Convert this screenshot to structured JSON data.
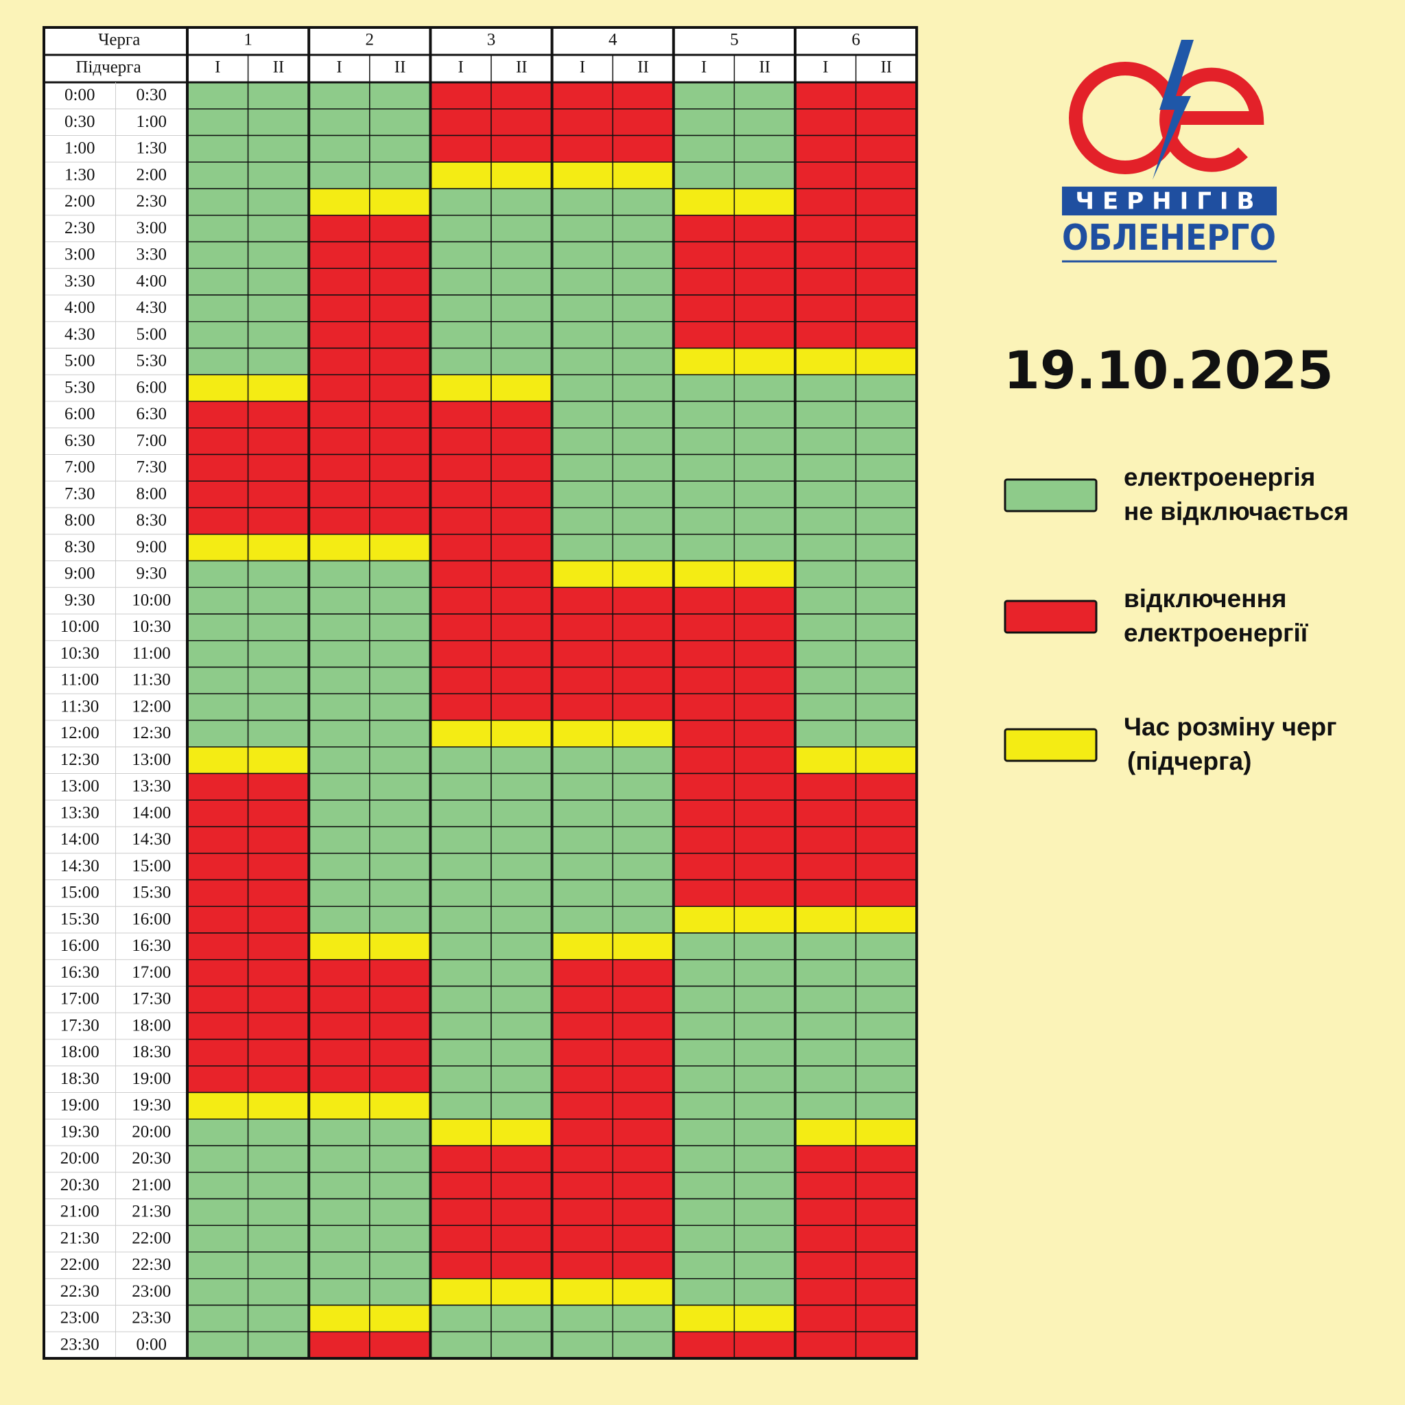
{
  "table": {
    "header": {
      "queue_label": "Черга",
      "subqueue_label": "Підчерга",
      "queues": [
        "1",
        "2",
        "3",
        "4",
        "5",
        "6"
      ],
      "subqueues": [
        "I",
        "II"
      ]
    },
    "rows": [
      {
        "start": "0:00",
        "end": "0:30",
        "cells": [
          "#8ecb8a",
          "#8ecb8a",
          "#8ecb8a",
          "#8ecb8a",
          "#e8232a",
          "#e8232a",
          "#e8232a",
          "#e8232a",
          "#8ecb8a",
          "#8ecb8a",
          "#e8232a",
          "#e8232a"
        ]
      },
      {
        "start": "0:30",
        "end": "1:00",
        "cells": [
          "#8ecb8a",
          "#8ecb8a",
          "#8ecb8a",
          "#8ecb8a",
          "#e8232a",
          "#e8232a",
          "#e8232a",
          "#e8232a",
          "#8ecb8a",
          "#8ecb8a",
          "#e8232a",
          "#e8232a"
        ]
      },
      {
        "start": "1:00",
        "end": "1:30",
        "cells": [
          "#8ecb8a",
          "#8ecb8a",
          "#8ecb8a",
          "#8ecb8a",
          "#e8232a",
          "#e8232a",
          "#e8232a",
          "#e8232a",
          "#8ecb8a",
          "#8ecb8a",
          "#e8232a",
          "#e8232a"
        ]
      },
      {
        "start": "1:30",
        "end": "2:00",
        "cells": [
          "#8ecb8a",
          "#8ecb8a",
          "#8ecb8a",
          "#8ecb8a",
          "#f4ec14",
          "#f4ec14",
          "#f4ec14",
          "#f4ec14",
          "#8ecb8a",
          "#8ecb8a",
          "#e8232a",
          "#e8232a"
        ]
      },
      {
        "start": "2:00",
        "end": "2:30",
        "cells": [
          "#8ecb8a",
          "#8ecb8a",
          "#f4ec14",
          "#f4ec14",
          "#8ecb8a",
          "#8ecb8a",
          "#8ecb8a",
          "#8ecb8a",
          "#f4ec14",
          "#f4ec14",
          "#e8232a",
          "#e8232a"
        ]
      },
      {
        "start": "2:30",
        "end": "3:00",
        "cells": [
          "#8ecb8a",
          "#8ecb8a",
          "#e8232a",
          "#e8232a",
          "#8ecb8a",
          "#8ecb8a",
          "#8ecb8a",
          "#8ecb8a",
          "#e8232a",
          "#e8232a",
          "#e8232a",
          "#e8232a"
        ]
      },
      {
        "start": "3:00",
        "end": "3:30",
        "cells": [
          "#8ecb8a",
          "#8ecb8a",
          "#e8232a",
          "#e8232a",
          "#8ecb8a",
          "#8ecb8a",
          "#8ecb8a",
          "#8ecb8a",
          "#e8232a",
          "#e8232a",
          "#e8232a",
          "#e8232a"
        ]
      },
      {
        "start": "3:30",
        "end": "4:00",
        "cells": [
          "#8ecb8a",
          "#8ecb8a",
          "#e8232a",
          "#e8232a",
          "#8ecb8a",
          "#8ecb8a",
          "#8ecb8a",
          "#8ecb8a",
          "#e8232a",
          "#e8232a",
          "#e8232a",
          "#e8232a"
        ]
      },
      {
        "start": "4:00",
        "end": "4:30",
        "cells": [
          "#8ecb8a",
          "#8ecb8a",
          "#e8232a",
          "#e8232a",
          "#8ecb8a",
          "#8ecb8a",
          "#8ecb8a",
          "#8ecb8a",
          "#e8232a",
          "#e8232a",
          "#e8232a",
          "#e8232a"
        ]
      },
      {
        "start": "4:30",
        "end": "5:00",
        "cells": [
          "#8ecb8a",
          "#8ecb8a",
          "#e8232a",
          "#e8232a",
          "#8ecb8a",
          "#8ecb8a",
          "#8ecb8a",
          "#8ecb8a",
          "#e8232a",
          "#e8232a",
          "#e8232a",
          "#e8232a"
        ]
      },
      {
        "start": "5:00",
        "end": "5:30",
        "cells": [
          "#8ecb8a",
          "#8ecb8a",
          "#e8232a",
          "#e8232a",
          "#8ecb8a",
          "#8ecb8a",
          "#8ecb8a",
          "#8ecb8a",
          "#f4ec14",
          "#f4ec14",
          "#f4ec14",
          "#f4ec14"
        ]
      },
      {
        "start": "5:30",
        "end": "6:00",
        "cells": [
          "#f4ec14",
          "#f4ec14",
          "#e8232a",
          "#e8232a",
          "#f4ec14",
          "#f4ec14",
          "#8ecb8a",
          "#8ecb8a",
          "#8ecb8a",
          "#8ecb8a",
          "#8ecb8a",
          "#8ecb8a"
        ]
      },
      {
        "start": "6:00",
        "end": "6:30",
        "cells": [
          "#e8232a",
          "#e8232a",
          "#e8232a",
          "#e8232a",
          "#e8232a",
          "#e8232a",
          "#8ecb8a",
          "#8ecb8a",
          "#8ecb8a",
          "#8ecb8a",
          "#8ecb8a",
          "#8ecb8a"
        ]
      },
      {
        "start": "6:30",
        "end": "7:00",
        "cells": [
          "#e8232a",
          "#e8232a",
          "#e8232a",
          "#e8232a",
          "#e8232a",
          "#e8232a",
          "#8ecb8a",
          "#8ecb8a",
          "#8ecb8a",
          "#8ecb8a",
          "#8ecb8a",
          "#8ecb8a"
        ]
      },
      {
        "start": "7:00",
        "end": "7:30",
        "cells": [
          "#e8232a",
          "#e8232a",
          "#e8232a",
          "#e8232a",
          "#e8232a",
          "#e8232a",
          "#8ecb8a",
          "#8ecb8a",
          "#8ecb8a",
          "#8ecb8a",
          "#8ecb8a",
          "#8ecb8a"
        ]
      },
      {
        "start": "7:30",
        "end": "8:00",
        "cells": [
          "#e8232a",
          "#e8232a",
          "#e8232a",
          "#e8232a",
          "#e8232a",
          "#e8232a",
          "#8ecb8a",
          "#8ecb8a",
          "#8ecb8a",
          "#8ecb8a",
          "#8ecb8a",
          "#8ecb8a"
        ]
      },
      {
        "start": "8:00",
        "end": "8:30",
        "cells": [
          "#e8232a",
          "#e8232a",
          "#e8232a",
          "#e8232a",
          "#e8232a",
          "#e8232a",
          "#8ecb8a",
          "#8ecb8a",
          "#8ecb8a",
          "#8ecb8a",
          "#8ecb8a",
          "#8ecb8a"
        ]
      },
      {
        "start": "8:30",
        "end": "9:00",
        "cells": [
          "#f4ec14",
          "#f4ec14",
          "#f4ec14",
          "#f4ec14",
          "#e8232a",
          "#e8232a",
          "#8ecb8a",
          "#8ecb8a",
          "#8ecb8a",
          "#8ecb8a",
          "#8ecb8a",
          "#8ecb8a"
        ]
      },
      {
        "start": "9:00",
        "end": "9:30",
        "cells": [
          "#8ecb8a",
          "#8ecb8a",
          "#8ecb8a",
          "#8ecb8a",
          "#e8232a",
          "#e8232a",
          "#f4ec14",
          "#f4ec14",
          "#f4ec14",
          "#f4ec14",
          "#8ecb8a",
          "#8ecb8a"
        ]
      },
      {
        "start": "9:30",
        "end": "10:00",
        "cells": [
          "#8ecb8a",
          "#8ecb8a",
          "#8ecb8a",
          "#8ecb8a",
          "#e8232a",
          "#e8232a",
          "#e8232a",
          "#e8232a",
          "#e8232a",
          "#e8232a",
          "#8ecb8a",
          "#8ecb8a"
        ]
      },
      {
        "start": "10:00",
        "end": "10:30",
        "cells": [
          "#8ecb8a",
          "#8ecb8a",
          "#8ecb8a",
          "#8ecb8a",
          "#e8232a",
          "#e8232a",
          "#e8232a",
          "#e8232a",
          "#e8232a",
          "#e8232a",
          "#8ecb8a",
          "#8ecb8a"
        ]
      },
      {
        "start": "10:30",
        "end": "11:00",
        "cells": [
          "#8ecb8a",
          "#8ecb8a",
          "#8ecb8a",
          "#8ecb8a",
          "#e8232a",
          "#e8232a",
          "#e8232a",
          "#e8232a",
          "#e8232a",
          "#e8232a",
          "#8ecb8a",
          "#8ecb8a"
        ]
      },
      {
        "start": "11:00",
        "end": "11:30",
        "cells": [
          "#8ecb8a",
          "#8ecb8a",
          "#8ecb8a",
          "#8ecb8a",
          "#e8232a",
          "#e8232a",
          "#e8232a",
          "#e8232a",
          "#e8232a",
          "#e8232a",
          "#8ecb8a",
          "#8ecb8a"
        ]
      },
      {
        "start": "11:30",
        "end": "12:00",
        "cells": [
          "#8ecb8a",
          "#8ecb8a",
          "#8ecb8a",
          "#8ecb8a",
          "#e8232a",
          "#e8232a",
          "#e8232a",
          "#e8232a",
          "#e8232a",
          "#e8232a",
          "#8ecb8a",
          "#8ecb8a"
        ]
      },
      {
        "start": "12:00",
        "end": "12:30",
        "cells": [
          "#8ecb8a",
          "#8ecb8a",
          "#8ecb8a",
          "#8ecb8a",
          "#f4ec14",
          "#f4ec14",
          "#f4ec14",
          "#f4ec14",
          "#e8232a",
          "#e8232a",
          "#8ecb8a",
          "#8ecb8a"
        ]
      },
      {
        "start": "12:30",
        "end": "13:00",
        "cells": [
          "#f4ec14",
          "#f4ec14",
          "#8ecb8a",
          "#8ecb8a",
          "#8ecb8a",
          "#8ecb8a",
          "#8ecb8a",
          "#8ecb8a",
          "#e8232a",
          "#e8232a",
          "#f4ec14",
          "#f4ec14"
        ]
      },
      {
        "start": "13:00",
        "end": "13:30",
        "cells": [
          "#e8232a",
          "#e8232a",
          "#8ecb8a",
          "#8ecb8a",
          "#8ecb8a",
          "#8ecb8a",
          "#8ecb8a",
          "#8ecb8a",
          "#e8232a",
          "#e8232a",
          "#e8232a",
          "#e8232a"
        ]
      },
      {
        "start": "13:30",
        "end": "14:00",
        "cells": [
          "#e8232a",
          "#e8232a",
          "#8ecb8a",
          "#8ecb8a",
          "#8ecb8a",
          "#8ecb8a",
          "#8ecb8a",
          "#8ecb8a",
          "#e8232a",
          "#e8232a",
          "#e8232a",
          "#e8232a"
        ]
      },
      {
        "start": "14:00",
        "end": "14:30",
        "cells": [
          "#e8232a",
          "#e8232a",
          "#8ecb8a",
          "#8ecb8a",
          "#8ecb8a",
          "#8ecb8a",
          "#8ecb8a",
          "#8ecb8a",
          "#e8232a",
          "#e8232a",
          "#e8232a",
          "#e8232a"
        ]
      },
      {
        "start": "14:30",
        "end": "15:00",
        "cells": [
          "#e8232a",
          "#e8232a",
          "#8ecb8a",
          "#8ecb8a",
          "#8ecb8a",
          "#8ecb8a",
          "#8ecb8a",
          "#8ecb8a",
          "#e8232a",
          "#e8232a",
          "#e8232a",
          "#e8232a"
        ]
      },
      {
        "start": "15:00",
        "end": "15:30",
        "cells": [
          "#e8232a",
          "#e8232a",
          "#8ecb8a",
          "#8ecb8a",
          "#8ecb8a",
          "#8ecb8a",
          "#8ecb8a",
          "#8ecb8a",
          "#e8232a",
          "#e8232a",
          "#e8232a",
          "#e8232a"
        ]
      },
      {
        "start": "15:30",
        "end": "16:00",
        "cells": [
          "#e8232a",
          "#e8232a",
          "#8ecb8a",
          "#8ecb8a",
          "#8ecb8a",
          "#8ecb8a",
          "#8ecb8a",
          "#8ecb8a",
          "#f4ec14",
          "#f4ec14",
          "#f4ec14",
          "#f4ec14"
        ]
      },
      {
        "start": "16:00",
        "end": "16:30",
        "cells": [
          "#e8232a",
          "#e8232a",
          "#f4ec14",
          "#f4ec14",
          "#8ecb8a",
          "#8ecb8a",
          "#f4ec14",
          "#f4ec14",
          "#8ecb8a",
          "#8ecb8a",
          "#8ecb8a",
          "#8ecb8a"
        ]
      },
      {
        "start": "16:30",
        "end": "17:00",
        "cells": [
          "#e8232a",
          "#e8232a",
          "#e8232a",
          "#e8232a",
          "#8ecb8a",
          "#8ecb8a",
          "#e8232a",
          "#e8232a",
          "#8ecb8a",
          "#8ecb8a",
          "#8ecb8a",
          "#8ecb8a"
        ]
      },
      {
        "start": "17:00",
        "end": "17:30",
        "cells": [
          "#e8232a",
          "#e8232a",
          "#e8232a",
          "#e8232a",
          "#8ecb8a",
          "#8ecb8a",
          "#e8232a",
          "#e8232a",
          "#8ecb8a",
          "#8ecb8a",
          "#8ecb8a",
          "#8ecb8a"
        ]
      },
      {
        "start": "17:30",
        "end": "18:00",
        "cells": [
          "#e8232a",
          "#e8232a",
          "#e8232a",
          "#e8232a",
          "#8ecb8a",
          "#8ecb8a",
          "#e8232a",
          "#e8232a",
          "#8ecb8a",
          "#8ecb8a",
          "#8ecb8a",
          "#8ecb8a"
        ]
      },
      {
        "start": "18:00",
        "end": "18:30",
        "cells": [
          "#e8232a",
          "#e8232a",
          "#e8232a",
          "#e8232a",
          "#8ecb8a",
          "#8ecb8a",
          "#e8232a",
          "#e8232a",
          "#8ecb8a",
          "#8ecb8a",
          "#8ecb8a",
          "#8ecb8a"
        ]
      },
      {
        "start": "18:30",
        "end": "19:00",
        "cells": [
          "#e8232a",
          "#e8232a",
          "#e8232a",
          "#e8232a",
          "#8ecb8a",
          "#8ecb8a",
          "#e8232a",
          "#e8232a",
          "#8ecb8a",
          "#8ecb8a",
          "#8ecb8a",
          "#8ecb8a"
        ]
      },
      {
        "start": "19:00",
        "end": "19:30",
        "cells": [
          "#f4ec14",
          "#f4ec14",
          "#f4ec14",
          "#f4ec14",
          "#8ecb8a",
          "#8ecb8a",
          "#e8232a",
          "#e8232a",
          "#8ecb8a",
          "#8ecb8a",
          "#8ecb8a",
          "#8ecb8a"
        ]
      },
      {
        "start": "19:30",
        "end": "20:00",
        "cells": [
          "#8ecb8a",
          "#8ecb8a",
          "#8ecb8a",
          "#8ecb8a",
          "#f4ec14",
          "#f4ec14",
          "#e8232a",
          "#e8232a",
          "#8ecb8a",
          "#8ecb8a",
          "#f4ec14",
          "#f4ec14"
        ]
      },
      {
        "start": "20:00",
        "end": "20:30",
        "cells": [
          "#8ecb8a",
          "#8ecb8a",
          "#8ecb8a",
          "#8ecb8a",
          "#e8232a",
          "#e8232a",
          "#e8232a",
          "#e8232a",
          "#8ecb8a",
          "#8ecb8a",
          "#e8232a",
          "#e8232a"
        ]
      },
      {
        "start": "20:30",
        "end": "21:00",
        "cells": [
          "#8ecb8a",
          "#8ecb8a",
          "#8ecb8a",
          "#8ecb8a",
          "#e8232a",
          "#e8232a",
          "#e8232a",
          "#e8232a",
          "#8ecb8a",
          "#8ecb8a",
          "#e8232a",
          "#e8232a"
        ]
      },
      {
        "start": "21:00",
        "end": "21:30",
        "cells": [
          "#8ecb8a",
          "#8ecb8a",
          "#8ecb8a",
          "#8ecb8a",
          "#e8232a",
          "#e8232a",
          "#e8232a",
          "#e8232a",
          "#8ecb8a",
          "#8ecb8a",
          "#e8232a",
          "#e8232a"
        ]
      },
      {
        "start": "21:30",
        "end": "22:00",
        "cells": [
          "#8ecb8a",
          "#8ecb8a",
          "#8ecb8a",
          "#8ecb8a",
          "#e8232a",
          "#e8232a",
          "#e8232a",
          "#e8232a",
          "#8ecb8a",
          "#8ecb8a",
          "#e8232a",
          "#e8232a"
        ]
      },
      {
        "start": "22:00",
        "end": "22:30",
        "cells": [
          "#8ecb8a",
          "#8ecb8a",
          "#8ecb8a",
          "#8ecb8a",
          "#e8232a",
          "#e8232a",
          "#e8232a",
          "#e8232a",
          "#8ecb8a",
          "#8ecb8a",
          "#e8232a",
          "#e8232a"
        ]
      },
      {
        "start": "22:30",
        "end": "23:00",
        "cells": [
          "#8ecb8a",
          "#8ecb8a",
          "#8ecb8a",
          "#8ecb8a",
          "#f4ec14",
          "#f4ec14",
          "#f4ec14",
          "#f4ec14",
          "#8ecb8a",
          "#8ecb8a",
          "#e8232a",
          "#e8232a"
        ]
      },
      {
        "start": "23:00",
        "end": "23:30",
        "cells": [
          "#8ecb8a",
          "#8ecb8a",
          "#f4ec14",
          "#f4ec14",
          "#8ecb8a",
          "#8ecb8a",
          "#8ecb8a",
          "#8ecb8a",
          "#f4ec14",
          "#f4ec14",
          "#e8232a",
          "#e8232a"
        ]
      },
      {
        "start": "23:30",
        "end": "0:00",
        "cells": [
          "#8ecb8a",
          "#8ecb8a",
          "#e8232a",
          "#e8232a",
          "#8ecb8a",
          "#8ecb8a",
          "#8ecb8a",
          "#8ecb8a",
          "#e8232a",
          "#e8232a",
          "#e8232a",
          "#e8232a"
        ]
      }
    ]
  },
  "logo": {
    "line1": "ЧЕРНІГІВ",
    "line2": "ОБЛЕНЕРГО"
  },
  "date": "19.10.2025",
  "legend": [
    {
      "color": "#8ecb8a",
      "label_lines": [
        "електроенергія",
        "не відключається"
      ]
    },
    {
      "color": "#e8232a",
      "label_lines": [
        "відключення",
        "електроенергії"
      ]
    },
    {
      "color": "#f4ec14",
      "label_lines": [
        "Час розміну черг",
        "(підчерга)"
      ]
    }
  ]
}
